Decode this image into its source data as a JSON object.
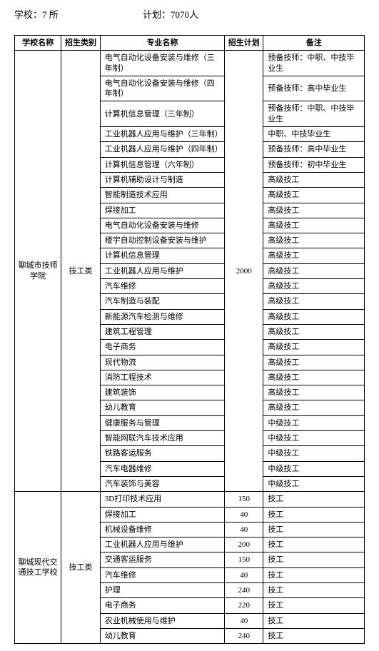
{
  "header": {
    "schools_label": "学校：7 所",
    "plan_label": "计划：7070人"
  },
  "table": {
    "headers": {
      "school": "学校名称",
      "category": "招生类别",
      "major": "专业名称",
      "plan": "招生计划",
      "remark": "备注"
    },
    "group1": {
      "school": "聊城市技师学院",
      "category": "技工类",
      "plan": "2000",
      "rows": [
        {
          "major": "电气自动化设备安装与维修（三年制）",
          "remark": "预备技师：中职、中技毕业生"
        },
        {
          "major": "电气自动化设备安装与维修（四年制）",
          "remark": "预备技师：高中毕业生"
        },
        {
          "major": "计算机信息管理（三年制）",
          "remark": "预备技师：中职、中技毕业生"
        },
        {
          "major": "工业机器人应用与维护（三年制）",
          "remark": "中职、中技毕业生"
        },
        {
          "major": "工业机器人应用与维护（四年制）",
          "remark": "预备技师：高中毕业生"
        },
        {
          "major": "计算机信息管理（六年制）",
          "remark": "预备技师：初中毕业生"
        },
        {
          "major": "计算机辅助设计与制造",
          "remark": "高级技工"
        },
        {
          "major": "智能制造技术应用",
          "remark": "高级技工"
        },
        {
          "major": "焊接加工",
          "remark": "高级技工"
        },
        {
          "major": "电气自动化设备安装与维修",
          "remark": "高级技工"
        },
        {
          "major": "楼宇自动控制设备安装与维护",
          "remark": "高级技工"
        },
        {
          "major": "计算机信息管理",
          "remark": "高级技工"
        },
        {
          "major": "工业机器人应用与维护",
          "remark": "高级技工"
        },
        {
          "major": "汽车维修",
          "remark": "高级技工"
        },
        {
          "major": "汽车制造与装配",
          "remark": "高级技工"
        },
        {
          "major": "新能源汽车检测与维修",
          "remark": "高级技工"
        },
        {
          "major": "建筑工程管理",
          "remark": "高级技工"
        },
        {
          "major": "电子商务",
          "remark": "高级技工"
        },
        {
          "major": "现代物流",
          "remark": "高级技工"
        },
        {
          "major": "消防工程技术",
          "remark": "高级技工"
        },
        {
          "major": "建筑装饰",
          "remark": "高级技工"
        },
        {
          "major": "幼儿教育",
          "remark": "高级技工"
        },
        {
          "major": "健康服务与管理",
          "remark": "中级技工"
        },
        {
          "major": "智能网联汽车技术应用",
          "remark": "中级技工"
        },
        {
          "major": "铁路客运服务",
          "remark": "中级技工"
        },
        {
          "major": "汽车电器维修",
          "remark": "中级技工"
        },
        {
          "major": "汽车装饰与美容",
          "remark": "中级技工"
        }
      ]
    },
    "group2": {
      "school": "聊城现代交通技工学校",
      "category": "技工类",
      "rows": [
        {
          "major": "3D打印技术应用",
          "plan": "150",
          "remark": "技工"
        },
        {
          "major": "焊接加工",
          "plan": "40",
          "remark": "技工"
        },
        {
          "major": "机械设备维修",
          "plan": "40",
          "remark": "技工"
        },
        {
          "major": "工业机器人应用与维护",
          "plan": "200",
          "remark": "技工"
        },
        {
          "major": "交通客运服务",
          "plan": "150",
          "remark": "技工"
        },
        {
          "major": "汽车维修",
          "plan": "40",
          "remark": "技工"
        },
        {
          "major": "护理",
          "plan": "240",
          "remark": "技工"
        },
        {
          "major": "电子商务",
          "plan": "220",
          "remark": "技工"
        },
        {
          "major": "农业机械使用与维护",
          "plan": "40",
          "remark": "技工"
        },
        {
          "major": "幼儿教育",
          "plan": "240",
          "remark": "技工"
        }
      ]
    }
  }
}
